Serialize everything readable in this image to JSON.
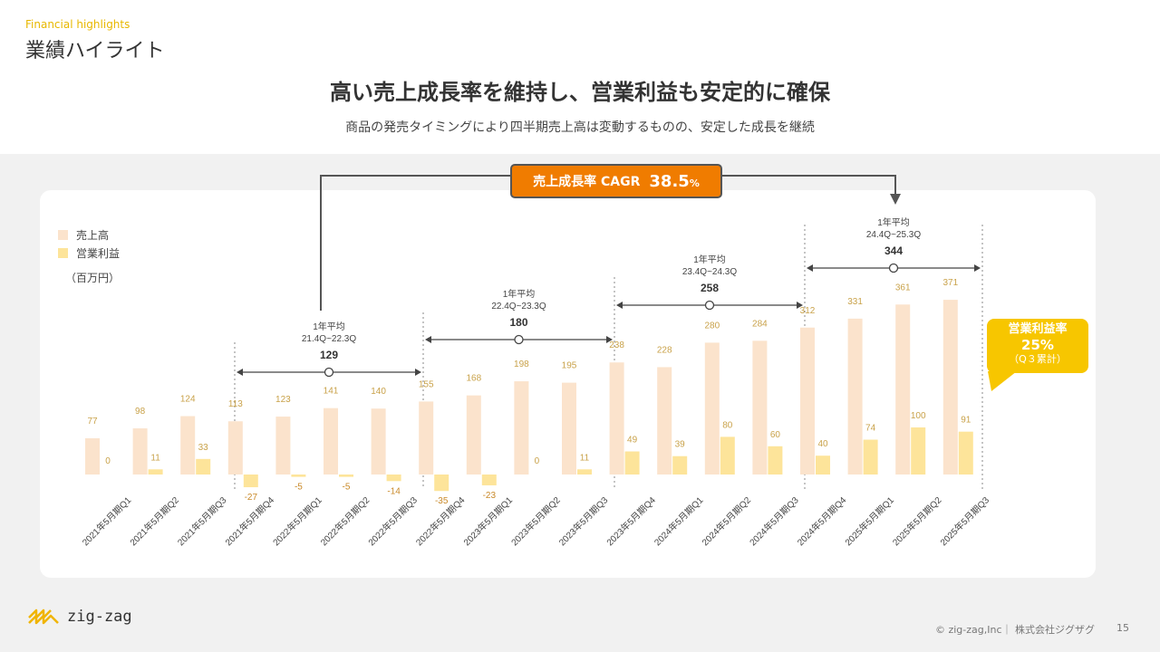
{
  "header": {
    "eyebrow": "Financial highlights",
    "title": "業績ハイライト",
    "headline": "高い売上成長率を維持し、営業利益も安定的に確保",
    "subheadline": "商品の発売タイミングにより四半期売上高は変動するものの、安定した成長を継続"
  },
  "cagr": {
    "label": "売上成長率 CAGR",
    "value": "38.5",
    "unit": "%"
  },
  "operating_margin": {
    "label": "営業利益率",
    "value": "25%",
    "note": "（Q３累計）"
  },
  "footer": {
    "copyright": "© zig-zag,Inc｜ 株式会社ジグザグ",
    "page": "15"
  },
  "logo": {
    "text": "zig-zag"
  },
  "colors": {
    "sales": "#fbe3cc",
    "profit": "#fde49a",
    "accent": "#f07c00",
    "bubble": "#f7c600",
    "value_label": "#c9a24a"
  },
  "chart_data": {
    "type": "bar",
    "unit_label": "（百万円）",
    "categories": [
      "2021年5月期Q1",
      "2021年5月期Q2",
      "2021年5月期Q3",
      "2021年5月期Q4",
      "2022年5月期Q1",
      "2022年5月期Q2",
      "2022年5月期Q3",
      "2022年5月期Q4",
      "2023年5月期Q1",
      "2023年5月期Q2",
      "2023年5月期Q3",
      "2023年5月期Q4",
      "2024年5月期Q1",
      "2024年5月期Q2",
      "2024年5月期Q3",
      "2024年5月期Q4",
      "2025年5月期Q1",
      "2025年5月期Q2",
      "2025年5月期Q3"
    ],
    "series": [
      {
        "name": "売上高",
        "values": [
          77,
          98,
          124,
          113,
          123,
          141,
          140,
          155,
          168,
          198,
          195,
          238,
          228,
          280,
          284,
          312,
          331,
          361,
          371
        ]
      },
      {
        "name": "営業利益",
        "values": [
          0,
          11,
          33,
          -27,
          -5,
          -5,
          -14,
          -35,
          -23,
          0,
          11,
          49,
          39,
          80,
          60,
          40,
          74,
          100,
          91
        ]
      }
    ],
    "annual_averages": [
      {
        "label": "1年平均",
        "period": "21.4Q~22.3Q",
        "value": 129,
        "from_index": 3,
        "to_index": 6
      },
      {
        "label": "1年平均",
        "period": "22.4Q~23.3Q",
        "value": 180,
        "from_index": 7,
        "to_index": 10
      },
      {
        "label": "1年平均",
        "period": "23.4Q~24.3Q",
        "value": 258,
        "from_index": 11,
        "to_index": 14
      },
      {
        "label": "1年平均",
        "period": "24.4Q~25.3Q",
        "value": 344,
        "from_index": 15,
        "to_index": 18
      }
    ],
    "legend_position": "top-left",
    "grid": false
  }
}
